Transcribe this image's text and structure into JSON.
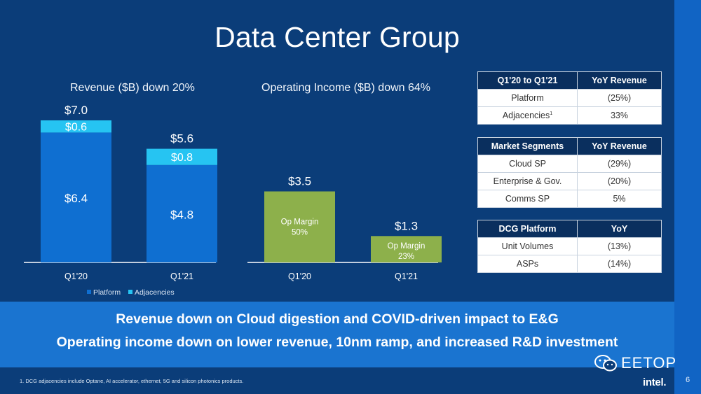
{
  "slide": {
    "title": "Data Center Group",
    "page_number": "6",
    "footnote": "1. DCG adjacencies include Optane, AI accelerator, ethernet, 5G and silicon photonics products.",
    "logo_text": "intel.",
    "watermark_text": "EETOP"
  },
  "banner": {
    "line1": "Revenue down on Cloud digestion and COVID-driven impact to E&G",
    "line2": "Operating income down on lower revenue, 10nm ramp, and increased R&D investment"
  },
  "colors": {
    "background": "#0b3d79",
    "platform": "#0f6fd1",
    "adjacencies": "#26c4f2",
    "op_income": "#8db04b",
    "banner": "#1a74d0",
    "table_header": "#0a2f5e"
  },
  "chart_data": [
    {
      "type": "bar",
      "stacked": true,
      "title": "Revenue ($B) down 20%",
      "categories": [
        "Q1'20",
        "Q1'21"
      ],
      "series": [
        {
          "name": "Platform",
          "values": [
            6.4,
            4.8
          ],
          "labels": [
            "$6.4",
            "$4.8"
          ]
        },
        {
          "name": "Adjacencies",
          "values": [
            0.6,
            0.8
          ],
          "labels": [
            "$0.6",
            "$0.8"
          ]
        }
      ],
      "totals": [
        "$7.0",
        "$5.6"
      ],
      "total_values": [
        7.0,
        5.6
      ],
      "legend": [
        "Platform",
        "Adjacencies"
      ],
      "legend_position": "bottom",
      "grid": false
    },
    {
      "type": "bar",
      "title": "Operating Income ($B) down 64%",
      "categories": [
        "Q1'20",
        "Q1'21"
      ],
      "values": [
        3.5,
        1.3
      ],
      "labels": [
        "$3.5",
        "$1.3"
      ],
      "inner_labels": [
        [
          "Op Margin",
          "50%"
        ],
        [
          "Op Margin",
          "23%"
        ]
      ],
      "grid": false
    }
  ],
  "tables": [
    {
      "headers": [
        "Q1'20 to Q1'21",
        "YoY Revenue"
      ],
      "rows": [
        [
          "Platform",
          "(25%)"
        ],
        [
          "Adjacencies",
          "33%"
        ]
      ],
      "footnote_marker": "1"
    },
    {
      "headers": [
        "Market Segments",
        "YoY Revenue"
      ],
      "rows": [
        [
          "Cloud SP",
          "(29%)"
        ],
        [
          "Enterprise & Gov.",
          "(20%)"
        ],
        [
          "Comms SP",
          "5%"
        ]
      ]
    },
    {
      "headers": [
        "DCG Platform",
        "YoY"
      ],
      "rows": [
        [
          "Unit Volumes",
          "(13%)"
        ],
        [
          "ASPs",
          "(14%)"
        ]
      ]
    }
  ]
}
